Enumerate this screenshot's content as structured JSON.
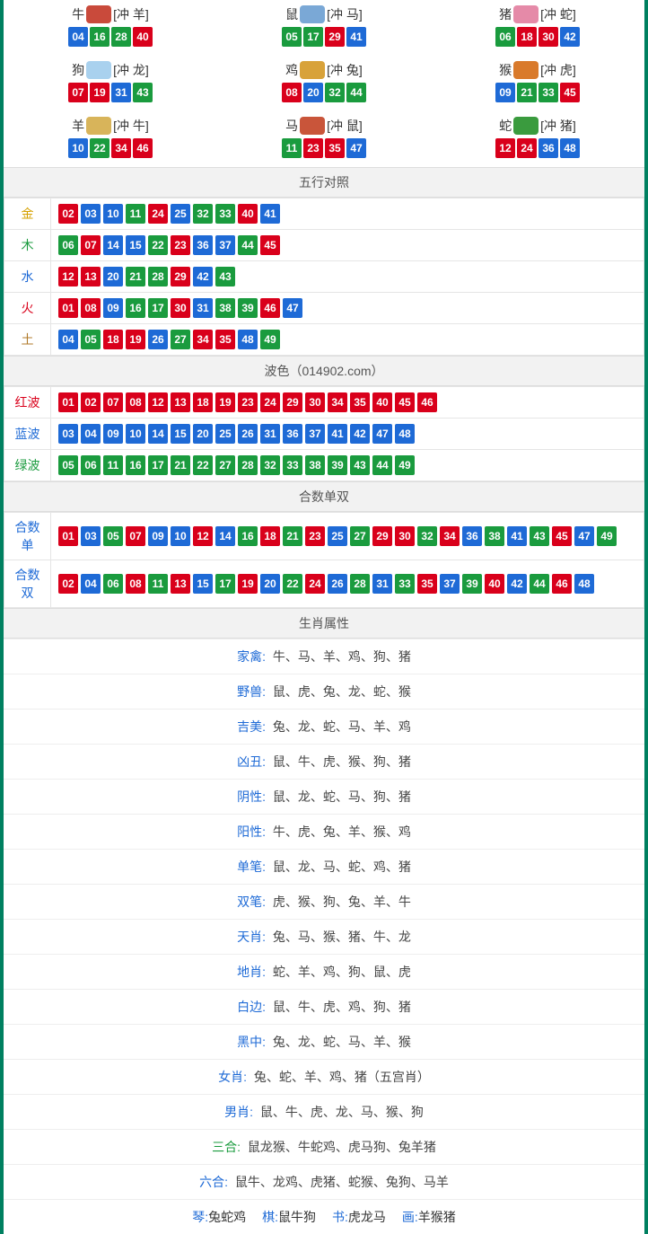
{
  "colors": {
    "red": "#d9001b",
    "blue": "#1e6ad6",
    "green": "#1a9b3e",
    "border": "#008060",
    "header_bg": "#f2f2f2"
  },
  "zodiac": [
    {
      "name": "牛",
      "clash": "[冲 羊]",
      "icon_color": "#c94a3b",
      "nums": [
        {
          "n": "04",
          "c": "blue"
        },
        {
          "n": "16",
          "c": "green"
        },
        {
          "n": "28",
          "c": "green"
        },
        {
          "n": "40",
          "c": "red"
        }
      ]
    },
    {
      "name": "鼠",
      "clash": "[冲 马]",
      "icon_color": "#7aa8d6",
      "nums": [
        {
          "n": "05",
          "c": "green"
        },
        {
          "n": "17",
          "c": "green"
        },
        {
          "n": "29",
          "c": "red"
        },
        {
          "n": "41",
          "c": "blue"
        }
      ]
    },
    {
      "name": "猪",
      "clash": "[冲 蛇]",
      "icon_color": "#e58aa8",
      "nums": [
        {
          "n": "06",
          "c": "green"
        },
        {
          "n": "18",
          "c": "red"
        },
        {
          "n": "30",
          "c": "red"
        },
        {
          "n": "42",
          "c": "blue"
        }
      ]
    },
    {
      "name": "狗",
      "clash": "[冲 龙]",
      "icon_color": "#a9d1ee",
      "nums": [
        {
          "n": "07",
          "c": "red"
        },
        {
          "n": "19",
          "c": "red"
        },
        {
          "n": "31",
          "c": "blue"
        },
        {
          "n": "43",
          "c": "green"
        }
      ]
    },
    {
      "name": "鸡",
      "clash": "[冲 兔]",
      "icon_color": "#d8a23a",
      "nums": [
        {
          "n": "08",
          "c": "red"
        },
        {
          "n": "20",
          "c": "blue"
        },
        {
          "n": "32",
          "c": "green"
        },
        {
          "n": "44",
          "c": "green"
        }
      ]
    },
    {
      "name": "猴",
      "clash": "[冲 虎]",
      "icon_color": "#d97a2b",
      "nums": [
        {
          "n": "09",
          "c": "blue"
        },
        {
          "n": "21",
          "c": "green"
        },
        {
          "n": "33",
          "c": "green"
        },
        {
          "n": "45",
          "c": "red"
        }
      ]
    },
    {
      "name": "羊",
      "clash": "[冲 牛]",
      "icon_color": "#d8b45a",
      "nums": [
        {
          "n": "10",
          "c": "blue"
        },
        {
          "n": "22",
          "c": "green"
        },
        {
          "n": "34",
          "c": "red"
        },
        {
          "n": "46",
          "c": "red"
        }
      ]
    },
    {
      "name": "马",
      "clash": "[冲 鼠]",
      "icon_color": "#c9553a",
      "nums": [
        {
          "n": "11",
          "c": "green"
        },
        {
          "n": "23",
          "c": "red"
        },
        {
          "n": "35",
          "c": "red"
        },
        {
          "n": "47",
          "c": "blue"
        }
      ]
    },
    {
      "name": "蛇",
      "clash": "[冲 猪]",
      "icon_color": "#3a9b3e",
      "nums": [
        {
          "n": "12",
          "c": "red"
        },
        {
          "n": "24",
          "c": "red"
        },
        {
          "n": "36",
          "c": "blue"
        },
        {
          "n": "48",
          "c": "blue"
        }
      ]
    }
  ],
  "wuxing": {
    "title": "五行对照",
    "rows": [
      {
        "label": "金",
        "cls": "lbl-gold",
        "nums": [
          {
            "n": "02",
            "c": "red"
          },
          {
            "n": "03",
            "c": "blue"
          },
          {
            "n": "10",
            "c": "blue"
          },
          {
            "n": "11",
            "c": "green"
          },
          {
            "n": "24",
            "c": "red"
          },
          {
            "n": "25",
            "c": "blue"
          },
          {
            "n": "32",
            "c": "green"
          },
          {
            "n": "33",
            "c": "green"
          },
          {
            "n": "40",
            "c": "red"
          },
          {
            "n": "41",
            "c": "blue"
          }
        ]
      },
      {
        "label": "木",
        "cls": "lbl-wood",
        "nums": [
          {
            "n": "06",
            "c": "green"
          },
          {
            "n": "07",
            "c": "red"
          },
          {
            "n": "14",
            "c": "blue"
          },
          {
            "n": "15",
            "c": "blue"
          },
          {
            "n": "22",
            "c": "green"
          },
          {
            "n": "23",
            "c": "red"
          },
          {
            "n": "36",
            "c": "blue"
          },
          {
            "n": "37",
            "c": "blue"
          },
          {
            "n": "44",
            "c": "green"
          },
          {
            "n": "45",
            "c": "red"
          }
        ]
      },
      {
        "label": "水",
        "cls": "lbl-water",
        "nums": [
          {
            "n": "12",
            "c": "red"
          },
          {
            "n": "13",
            "c": "red"
          },
          {
            "n": "20",
            "c": "blue"
          },
          {
            "n": "21",
            "c": "green"
          },
          {
            "n": "28",
            "c": "green"
          },
          {
            "n": "29",
            "c": "red"
          },
          {
            "n": "42",
            "c": "blue"
          },
          {
            "n": "43",
            "c": "green"
          }
        ]
      },
      {
        "label": "火",
        "cls": "lbl-fire",
        "nums": [
          {
            "n": "01",
            "c": "red"
          },
          {
            "n": "08",
            "c": "red"
          },
          {
            "n": "09",
            "c": "blue"
          },
          {
            "n": "16",
            "c": "green"
          },
          {
            "n": "17",
            "c": "green"
          },
          {
            "n": "30",
            "c": "red"
          },
          {
            "n": "31",
            "c": "blue"
          },
          {
            "n": "38",
            "c": "green"
          },
          {
            "n": "39",
            "c": "green"
          },
          {
            "n": "46",
            "c": "red"
          },
          {
            "n": "47",
            "c": "blue"
          }
        ]
      },
      {
        "label": "土",
        "cls": "lbl-earth",
        "nums": [
          {
            "n": "04",
            "c": "blue"
          },
          {
            "n": "05",
            "c": "green"
          },
          {
            "n": "18",
            "c": "red"
          },
          {
            "n": "19",
            "c": "red"
          },
          {
            "n": "26",
            "c": "blue"
          },
          {
            "n": "27",
            "c": "green"
          },
          {
            "n": "34",
            "c": "red"
          },
          {
            "n": "35",
            "c": "red"
          },
          {
            "n": "48",
            "c": "blue"
          },
          {
            "n": "49",
            "c": "green"
          }
        ]
      }
    ]
  },
  "bose": {
    "title": "波色（014902.com）",
    "rows": [
      {
        "label": "红波",
        "cls": "lbl-red",
        "nums": [
          {
            "n": "01",
            "c": "red"
          },
          {
            "n": "02",
            "c": "red"
          },
          {
            "n": "07",
            "c": "red"
          },
          {
            "n": "08",
            "c": "red"
          },
          {
            "n": "12",
            "c": "red"
          },
          {
            "n": "13",
            "c": "red"
          },
          {
            "n": "18",
            "c": "red"
          },
          {
            "n": "19",
            "c": "red"
          },
          {
            "n": "23",
            "c": "red"
          },
          {
            "n": "24",
            "c": "red"
          },
          {
            "n": "29",
            "c": "red"
          },
          {
            "n": "30",
            "c": "red"
          },
          {
            "n": "34",
            "c": "red"
          },
          {
            "n": "35",
            "c": "red"
          },
          {
            "n": "40",
            "c": "red"
          },
          {
            "n": "45",
            "c": "red"
          },
          {
            "n": "46",
            "c": "red"
          }
        ]
      },
      {
        "label": "蓝波",
        "cls": "lbl-blue",
        "nums": [
          {
            "n": "03",
            "c": "blue"
          },
          {
            "n": "04",
            "c": "blue"
          },
          {
            "n": "09",
            "c": "blue"
          },
          {
            "n": "10",
            "c": "blue"
          },
          {
            "n": "14",
            "c": "blue"
          },
          {
            "n": "15",
            "c": "blue"
          },
          {
            "n": "20",
            "c": "blue"
          },
          {
            "n": "25",
            "c": "blue"
          },
          {
            "n": "26",
            "c": "blue"
          },
          {
            "n": "31",
            "c": "blue"
          },
          {
            "n": "36",
            "c": "blue"
          },
          {
            "n": "37",
            "c": "blue"
          },
          {
            "n": "41",
            "c": "blue"
          },
          {
            "n": "42",
            "c": "blue"
          },
          {
            "n": "47",
            "c": "blue"
          },
          {
            "n": "48",
            "c": "blue"
          }
        ]
      },
      {
        "label": "绿波",
        "cls": "lbl-green",
        "nums": [
          {
            "n": "05",
            "c": "green"
          },
          {
            "n": "06",
            "c": "green"
          },
          {
            "n": "11",
            "c": "green"
          },
          {
            "n": "16",
            "c": "green"
          },
          {
            "n": "17",
            "c": "green"
          },
          {
            "n": "21",
            "c": "green"
          },
          {
            "n": "22",
            "c": "green"
          },
          {
            "n": "27",
            "c": "green"
          },
          {
            "n": "28",
            "c": "green"
          },
          {
            "n": "32",
            "c": "green"
          },
          {
            "n": "33",
            "c": "green"
          },
          {
            "n": "38",
            "c": "green"
          },
          {
            "n": "39",
            "c": "green"
          },
          {
            "n": "43",
            "c": "green"
          },
          {
            "n": "44",
            "c": "green"
          },
          {
            "n": "49",
            "c": "green"
          }
        ]
      }
    ]
  },
  "heshu": {
    "title": "合数单双",
    "rows": [
      {
        "label": "合数单",
        "cls": "lbl-blue",
        "nums": [
          {
            "n": "01",
            "c": "red"
          },
          {
            "n": "03",
            "c": "blue"
          },
          {
            "n": "05",
            "c": "green"
          },
          {
            "n": "07",
            "c": "red"
          },
          {
            "n": "09",
            "c": "blue"
          },
          {
            "n": "10",
            "c": "blue"
          },
          {
            "n": "12",
            "c": "red"
          },
          {
            "n": "14",
            "c": "blue"
          },
          {
            "n": "16",
            "c": "green"
          },
          {
            "n": "18",
            "c": "red"
          },
          {
            "n": "21",
            "c": "green"
          },
          {
            "n": "23",
            "c": "red"
          },
          {
            "n": "25",
            "c": "blue"
          },
          {
            "n": "27",
            "c": "green"
          },
          {
            "n": "29",
            "c": "red"
          },
          {
            "n": "30",
            "c": "red"
          },
          {
            "n": "32",
            "c": "green"
          },
          {
            "n": "34",
            "c": "red"
          },
          {
            "n": "36",
            "c": "blue"
          },
          {
            "n": "38",
            "c": "green"
          },
          {
            "n": "41",
            "c": "blue"
          },
          {
            "n": "43",
            "c": "green"
          },
          {
            "n": "45",
            "c": "red"
          },
          {
            "n": "47",
            "c": "blue"
          },
          {
            "n": "49",
            "c": "green"
          }
        ]
      },
      {
        "label": "合数双",
        "cls": "lbl-blue",
        "nums": [
          {
            "n": "02",
            "c": "red"
          },
          {
            "n": "04",
            "c": "blue"
          },
          {
            "n": "06",
            "c": "green"
          },
          {
            "n": "08",
            "c": "red"
          },
          {
            "n": "11",
            "c": "green"
          },
          {
            "n": "13",
            "c": "red"
          },
          {
            "n": "15",
            "c": "blue"
          },
          {
            "n": "17",
            "c": "green"
          },
          {
            "n": "19",
            "c": "red"
          },
          {
            "n": "20",
            "c": "blue"
          },
          {
            "n": "22",
            "c": "green"
          },
          {
            "n": "24",
            "c": "red"
          },
          {
            "n": "26",
            "c": "blue"
          },
          {
            "n": "28",
            "c": "green"
          },
          {
            "n": "31",
            "c": "blue"
          },
          {
            "n": "33",
            "c": "green"
          },
          {
            "n": "35",
            "c": "red"
          },
          {
            "n": "37",
            "c": "blue"
          },
          {
            "n": "39",
            "c": "green"
          },
          {
            "n": "40",
            "c": "red"
          },
          {
            "n": "42",
            "c": "blue"
          },
          {
            "n": "44",
            "c": "green"
          },
          {
            "n": "46",
            "c": "red"
          },
          {
            "n": "48",
            "c": "blue"
          }
        ]
      }
    ]
  },
  "attrs": {
    "title": "生肖属性",
    "rows": [
      {
        "key": "家禽",
        "kcls": "",
        "val": "牛、马、羊、鸡、狗、猪"
      },
      {
        "key": "野兽",
        "kcls": "",
        "val": "鼠、虎、兔、龙、蛇、猴"
      },
      {
        "key": "吉美",
        "kcls": "",
        "val": "兔、龙、蛇、马、羊、鸡"
      },
      {
        "key": "凶丑",
        "kcls": "",
        "val": "鼠、牛、虎、猴、狗、猪"
      },
      {
        "key": "阴性",
        "kcls": "",
        "val": "鼠、龙、蛇、马、狗、猪"
      },
      {
        "key": "阳性",
        "kcls": "",
        "val": "牛、虎、兔、羊、猴、鸡"
      },
      {
        "key": "单笔",
        "kcls": "",
        "val": "鼠、龙、马、蛇、鸡、猪"
      },
      {
        "key": "双笔",
        "kcls": "",
        "val": "虎、猴、狗、兔、羊、牛"
      },
      {
        "key": "天肖",
        "kcls": "",
        "val": "兔、马、猴、猪、牛、龙"
      },
      {
        "key": "地肖",
        "kcls": "",
        "val": "蛇、羊、鸡、狗、鼠、虎"
      },
      {
        "key": "白边",
        "kcls": "",
        "val": "鼠、牛、虎、鸡、狗、猪"
      },
      {
        "key": "黑中",
        "kcls": "",
        "val": "兔、龙、蛇、马、羊、猴"
      },
      {
        "key": "女肖",
        "kcls": "",
        "val": "兔、蛇、羊、鸡、猪（五宫肖）"
      },
      {
        "key": "男肖",
        "kcls": "",
        "val": "鼠、牛、虎、龙、马、猴、狗"
      },
      {
        "key": "三合",
        "kcls": "green",
        "val": "鼠龙猴、牛蛇鸡、虎马狗、兔羊猪"
      },
      {
        "key": "六合",
        "kcls": "",
        "val": "鼠牛、龙鸡、虎猪、蛇猴、兔狗、马羊"
      }
    ]
  },
  "bottom": [
    {
      "key": "琴",
      "val": "兔蛇鸡"
    },
    {
      "key": "棋",
      "val": "鼠牛狗"
    },
    {
      "key": "书",
      "val": "虎龙马"
    },
    {
      "key": "画",
      "val": "羊猴猪"
    }
  ]
}
